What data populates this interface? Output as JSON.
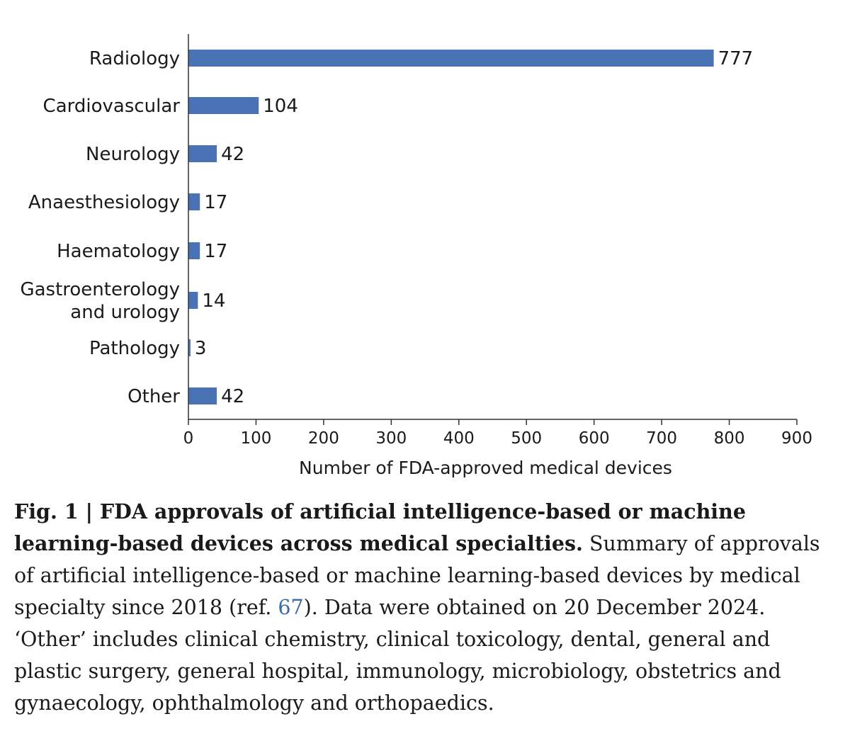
{
  "chart_data": {
    "type": "bar",
    "orientation": "horizontal",
    "categories": [
      "Radiology",
      "Cardiovascular",
      "Neurology",
      "Anaesthesiology",
      "Haematology",
      "Gastroenterology and urology",
      "Pathology",
      "Other"
    ],
    "category_lines": [
      [
        "Radiology"
      ],
      [
        "Cardiovascular"
      ],
      [
        "Neurology"
      ],
      [
        "Anaesthesiology"
      ],
      [
        "Haematology"
      ],
      [
        "Gastroenterology",
        "and urology"
      ],
      [
        "Pathology"
      ],
      [
        "Other"
      ]
    ],
    "values": [
      777,
      104,
      42,
      17,
      17,
      14,
      3,
      42
    ],
    "xlabel": "Number of FDA-approved medical devices",
    "ylabel": "",
    "xlim": [
      0,
      900
    ],
    "xticks": [
      0,
      100,
      200,
      300,
      400,
      500,
      600,
      700,
      800,
      900
    ],
    "bar_color": "#4a73b5",
    "grid": false
  },
  "caption": {
    "bold": "Fig. 1 | FDA approvals of artificial intelligence-based or machine learning-based devices across medical specialties.",
    "text_before_ref": " Summary of approvals of artificial intelligence-based or machine learning-based devices by medical specialty since 2018 (ref. ",
    "ref": "67",
    "text_after_ref": "). Data were obtained on 20 December 2024. ‘Other’ includes clinical chemistry, clinical toxicology, dental, general and plastic surgery, general hospital, immunology, microbiology, obstetrics and gynaecology, ophthalmology and orthopaedics.",
    "link_color": "#3c6ba5"
  }
}
